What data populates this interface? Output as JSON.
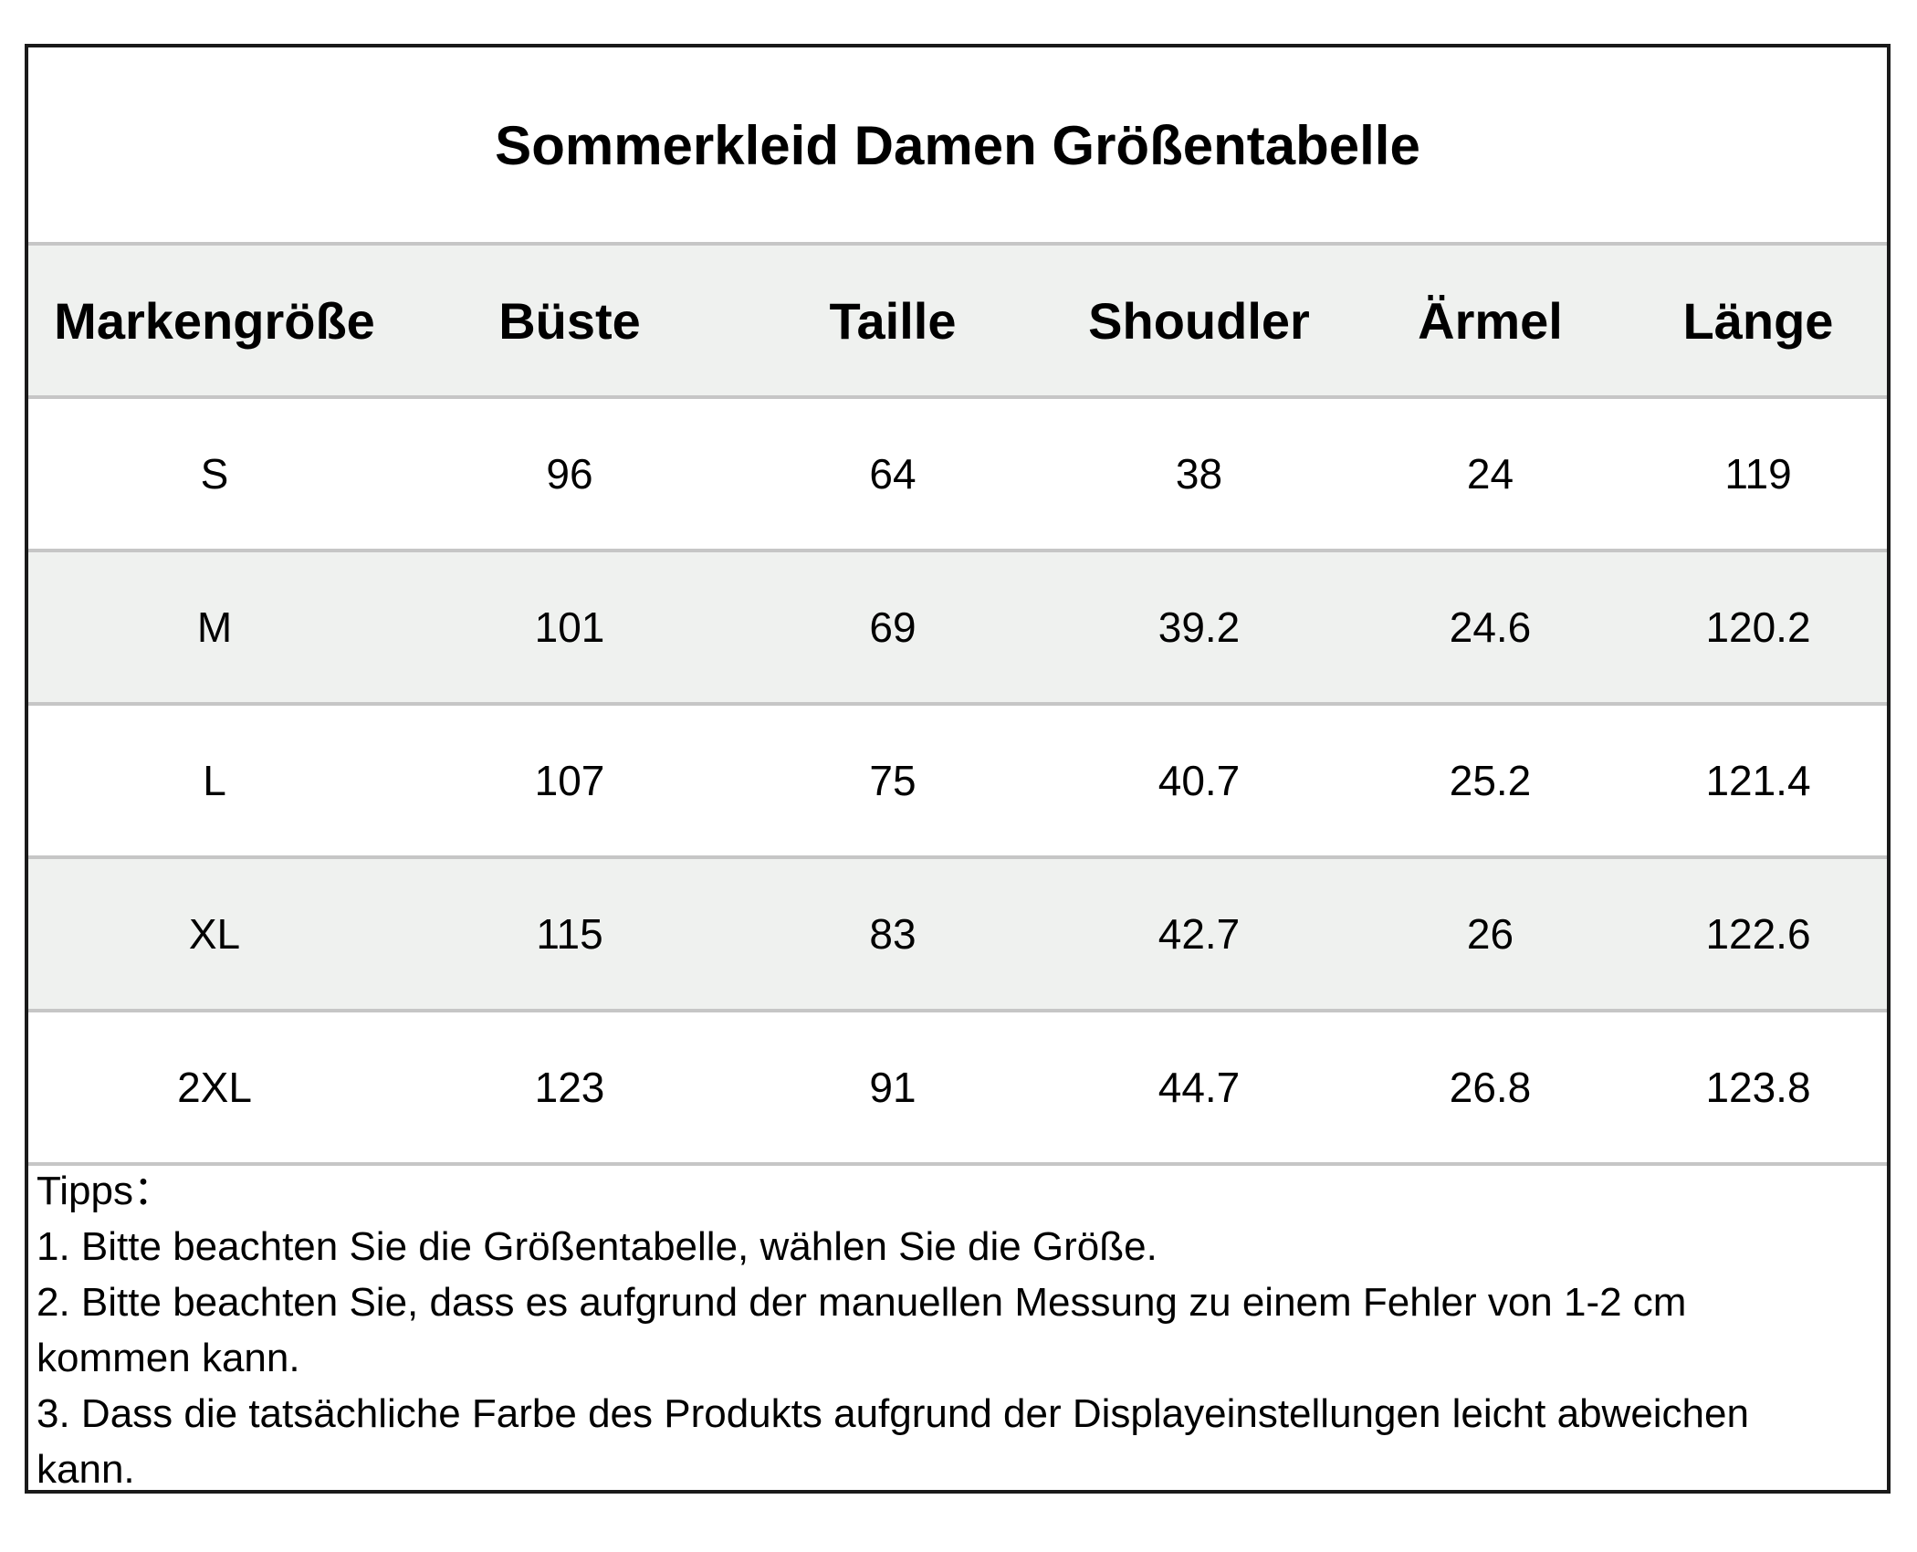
{
  "title": "Sommerkleid Damen Größentabelle",
  "table": {
    "headers": [
      "Markengröße",
      "Büste",
      "Taille",
      "Shoudler",
      "Ärmel",
      "Länge"
    ],
    "rows": [
      [
        "S",
        "96",
        "64",
        "38",
        "24",
        "119"
      ],
      [
        "M",
        "101",
        "69",
        "39.2",
        "24.6",
        "120.2"
      ],
      [
        "L",
        "107",
        "75",
        "40.7",
        "25.2",
        "121.4"
      ],
      [
        "XL",
        "115",
        "83",
        "42.7",
        "26",
        "122.6"
      ],
      [
        "2XL",
        "123",
        "91",
        "44.7",
        "26.8",
        "123.8"
      ]
    ]
  },
  "notes": {
    "heading": "Tipps：",
    "items": [
      "1. Bitte beachten Sie die Größentabelle, wählen Sie die Größe.",
      "2. Bitte beachten Sie, dass es aufgrund der manuellen Messung zu einem Fehler von 1-2 cm kommen kann.",
      "3. Dass die tatsächliche Farbe des Produkts aufgrund der Displayeinstellungen leicht abweichen kann."
    ]
  },
  "colors": {
    "border": "#1a1a1a",
    "grid_line": "#c6c6c6",
    "shaded_row": "#eff1ef",
    "text": "#000000"
  }
}
